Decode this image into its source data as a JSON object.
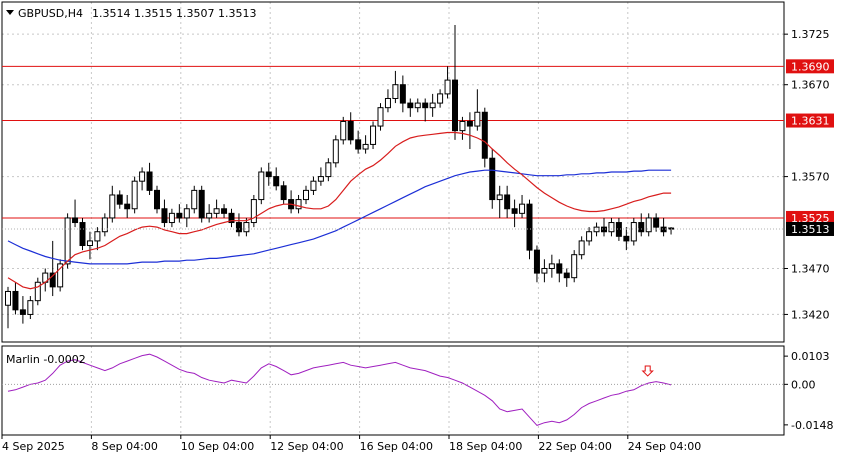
{
  "header": {
    "symbol": "GBPUSD,H4",
    "ohlc": "1.3514 1.3515 1.3507 1.3513"
  },
  "indicator": {
    "name": "Marlin",
    "value": "-0.0002",
    "label": "Marlin -0.0002",
    "ticks": [
      "0.0103",
      "0.00",
      "-0.0148"
    ],
    "signal": "down-arrow"
  },
  "chart_data": {
    "type": "candlestick",
    "y_ticks": [
      "1.3725",
      "1.3670",
      "1.3570",
      "1.3470",
      "1.3420"
    ],
    "ylim": [
      1.339,
      1.376
    ],
    "x_ticks": [
      "4 Sep 2025",
      "8 Sep 04:00",
      "10 Sep 04:00",
      "12 Sep 04:00",
      "16 Sep 04:00",
      "18 Sep 04:00",
      "22 Sep 04:00",
      "24 Sep 04:00"
    ],
    "levels": [
      {
        "value": 1.369,
        "label": "1.3690"
      },
      {
        "value": 1.3631,
        "label": "1.3631"
      },
      {
        "value": 1.3525,
        "label": "1.3525"
      }
    ],
    "current_price": {
      "value": 1.3513,
      "label": "1.3513"
    },
    "candles": [
      [
        1.343,
        1.345,
        1.3405,
        1.3445
      ],
      [
        1.3445,
        1.3455,
        1.342,
        1.3425
      ],
      [
        1.3425,
        1.344,
        1.341,
        1.342
      ],
      [
        1.342,
        1.344,
        1.3415,
        1.3435
      ],
      [
        1.3435,
        1.346,
        1.343,
        1.3455
      ],
      [
        1.3455,
        1.347,
        1.3445,
        1.3465
      ],
      [
        1.3465,
        1.35,
        1.344,
        1.345
      ],
      [
        1.345,
        1.348,
        1.3445,
        1.3475
      ],
      [
        1.3475,
        1.353,
        1.347,
        1.3525
      ],
      [
        1.3525,
        1.3545,
        1.3515,
        1.352
      ],
      [
        1.352,
        1.3525,
        1.349,
        1.3495
      ],
      [
        1.3495,
        1.351,
        1.348,
        1.35
      ],
      [
        1.35,
        1.3515,
        1.349,
        1.351
      ],
      [
        1.351,
        1.353,
        1.3505,
        1.3525
      ],
      [
        1.3525,
        1.356,
        1.352,
        1.355
      ],
      [
        1.355,
        1.3555,
        1.3535,
        1.354
      ],
      [
        1.354,
        1.355,
        1.3525,
        1.3535
      ],
      [
        1.3535,
        1.357,
        1.353,
        1.3565
      ],
      [
        1.3565,
        1.358,
        1.3555,
        1.3575
      ],
      [
        1.3575,
        1.3585,
        1.355,
        1.3555
      ],
      [
        1.3555,
        1.356,
        1.353,
        1.3535
      ],
      [
        1.3535,
        1.3545,
        1.3515,
        1.352
      ],
      [
        1.352,
        1.3535,
        1.3515,
        1.353
      ],
      [
        1.353,
        1.354,
        1.352,
        1.3525
      ],
      [
        1.3525,
        1.354,
        1.3515,
        1.3535
      ],
      [
        1.3535,
        1.356,
        1.353,
        1.3555
      ],
      [
        1.3555,
        1.356,
        1.352,
        1.3525
      ],
      [
        1.3525,
        1.354,
        1.352,
        1.353
      ],
      [
        1.353,
        1.3545,
        1.3525,
        1.3535
      ],
      [
        1.3535,
        1.354,
        1.3525,
        1.353
      ],
      [
        1.353,
        1.3535,
        1.3515,
        1.352
      ],
      [
        1.352,
        1.353,
        1.3505,
        1.351
      ],
      [
        1.351,
        1.3525,
        1.3505,
        1.352
      ],
      [
        1.352,
        1.355,
        1.3515,
        1.3545
      ],
      [
        1.3545,
        1.358,
        1.354,
        1.3575
      ],
      [
        1.3575,
        1.3585,
        1.356,
        1.357
      ],
      [
        1.357,
        1.358,
        1.3555,
        1.356
      ],
      [
        1.356,
        1.3565,
        1.354,
        1.3545
      ],
      [
        1.3545,
        1.3555,
        1.353,
        1.3535
      ],
      [
        1.3535,
        1.355,
        1.353,
        1.3545
      ],
      [
        1.3545,
        1.356,
        1.354,
        1.3555
      ],
      [
        1.3555,
        1.357,
        1.355,
        1.3565
      ],
      [
        1.3565,
        1.358,
        1.356,
        1.357
      ],
      [
        1.357,
        1.359,
        1.3565,
        1.3585
      ],
      [
        1.3585,
        1.3615,
        1.358,
        1.361
      ],
      [
        1.361,
        1.3635,
        1.3605,
        1.363
      ],
      [
        1.363,
        1.364,
        1.3605,
        1.361
      ],
      [
        1.361,
        1.362,
        1.3595,
        1.36
      ],
      [
        1.36,
        1.3615,
        1.3595,
        1.3605
      ],
      [
        1.3605,
        1.363,
        1.36,
        1.3625
      ],
      [
        1.3625,
        1.365,
        1.362,
        1.3645
      ],
      [
        1.3645,
        1.3665,
        1.364,
        1.3655
      ],
      [
        1.3655,
        1.3685,
        1.365,
        1.367
      ],
      [
        1.367,
        1.368,
        1.364,
        1.365
      ],
      [
        1.365,
        1.3655,
        1.3635,
        1.3645
      ],
      [
        1.3645,
        1.3655,
        1.364,
        1.365
      ],
      [
        1.365,
        1.3655,
        1.363,
        1.3645
      ],
      [
        1.3645,
        1.366,
        1.3635,
        1.365
      ],
      [
        1.365,
        1.3665,
        1.3645,
        1.366
      ],
      [
        1.366,
        1.369,
        1.3655,
        1.3675
      ],
      [
        1.3675,
        1.3735,
        1.361,
        1.362
      ],
      [
        1.362,
        1.3635,
        1.361,
        1.363
      ],
      [
        1.363,
        1.364,
        1.36,
        1.3625
      ],
      [
        1.3625,
        1.3665,
        1.362,
        1.364
      ],
      [
        1.364,
        1.3645,
        1.358,
        1.359
      ],
      [
        1.359,
        1.36,
        1.3535,
        1.3545
      ],
      [
        1.3545,
        1.356,
        1.3525,
        1.355
      ],
      [
        1.355,
        1.356,
        1.3525,
        1.3535
      ],
      [
        1.3535,
        1.3545,
        1.3515,
        1.353
      ],
      [
        1.353,
        1.355,
        1.3525,
        1.354
      ],
      [
        1.354,
        1.3545,
        1.348,
        1.349
      ],
      [
        1.349,
        1.3495,
        1.3455,
        1.3465
      ],
      [
        1.3465,
        1.348,
        1.3455,
        1.347
      ],
      [
        1.347,
        1.3485,
        1.346,
        1.3475
      ],
      [
        1.3475,
        1.348,
        1.3455,
        1.3465
      ],
      [
        1.3465,
        1.347,
        1.345,
        1.346
      ],
      [
        1.346,
        1.349,
        1.3455,
        1.3485
      ],
      [
        1.3485,
        1.3505,
        1.348,
        1.35
      ],
      [
        1.35,
        1.3515,
        1.3495,
        1.351
      ],
      [
        1.351,
        1.352,
        1.3505,
        1.3515
      ],
      [
        1.3515,
        1.3525,
        1.3505,
        1.351
      ],
      [
        1.351,
        1.3525,
        1.3505,
        1.352
      ],
      [
        1.352,
        1.3525,
        1.35,
        1.3505
      ],
      [
        1.3505,
        1.3515,
        1.349,
        1.35
      ],
      [
        1.35,
        1.3525,
        1.3495,
        1.352
      ],
      [
        1.352,
        1.353,
        1.3505,
        1.351
      ],
      [
        1.351,
        1.353,
        1.3505,
        1.3525
      ],
      [
        1.3525,
        1.353,
        1.351,
        1.3515
      ],
      [
        1.3515,
        1.3525,
        1.3505,
        1.351
      ],
      [
        1.3514,
        1.3515,
        1.3507,
        1.3513
      ]
    ],
    "ma_red": [
      1.346,
      1.3455,
      1.345,
      1.3448,
      1.345,
      1.3455,
      1.3462,
      1.347,
      1.3478,
      1.3485,
      1.3488,
      1.349,
      1.3492,
      1.3495,
      1.35,
      1.3505,
      1.3508,
      1.3512,
      1.3515,
      1.3516,
      1.3515,
      1.3512,
      1.351,
      1.3508,
      1.3508,
      1.351,
      1.3512,
      1.3515,
      1.3518,
      1.352,
      1.3522,
      1.3522,
      1.3522,
      1.3525,
      1.353,
      1.3535,
      1.3538,
      1.354,
      1.354,
      1.3538,
      1.3536,
      1.3535,
      1.3535,
      1.3538,
      1.3545,
      1.3555,
      1.3565,
      1.3572,
      1.3578,
      1.3582,
      1.3588,
      1.3595,
      1.3603,
      1.3608,
      1.3612,
      1.3614,
      1.3615,
      1.3616,
      1.3617,
      1.3618,
      1.3618,
      1.3617,
      1.3615,
      1.3612,
      1.3608,
      1.36,
      1.3593,
      1.3585,
      1.3578,
      1.3572,
      1.3565,
      1.3558,
      1.3552,
      1.3547,
      1.3542,
      1.3538,
      1.3535,
      1.3533,
      1.3532,
      1.3532,
      1.3533,
      1.3535,
      1.3537,
      1.354,
      1.3543,
      1.3545,
      1.3548,
      1.355,
      1.3552,
      1.3552
    ],
    "ma_blue": [
      1.35,
      1.3496,
      1.3492,
      1.3489,
      1.3486,
      1.3483,
      1.3481,
      1.3479,
      1.3478,
      1.3477,
      1.3476,
      1.3475,
      1.3475,
      1.3475,
      1.3475,
      1.3475,
      1.3475,
      1.3476,
      1.3477,
      1.3477,
      1.3477,
      1.3478,
      1.3478,
      1.3478,
      1.3479,
      1.3479,
      1.348,
      1.3481,
      1.3481,
      1.3482,
      1.3483,
      1.3484,
      1.3485,
      1.3486,
      1.3488,
      1.349,
      1.3492,
      1.3494,
      1.3496,
      1.3498,
      1.35,
      1.3502,
      1.3505,
      1.3508,
      1.3511,
      1.3515,
      1.3519,
      1.3523,
      1.3527,
      1.3531,
      1.3535,
      1.3539,
      1.3543,
      1.3547,
      1.3551,
      1.3555,
      1.3559,
      1.3562,
      1.3565,
      1.3568,
      1.3571,
      1.3573,
      1.3575,
      1.3576,
      1.3577,
      1.3577,
      1.3576,
      1.3575,
      1.3574,
      1.3573,
      1.3572,
      1.3571,
      1.3571,
      1.3571,
      1.3571,
      1.3572,
      1.3572,
      1.3573,
      1.3573,
      1.3574,
      1.3574,
      1.3575,
      1.3575,
      1.3575,
      1.3576,
      1.3576,
      1.3577,
      1.3577,
      1.3577,
      1.3577
    ],
    "marlin_ylim": [
      -0.0185,
      0.014
    ],
    "marlin": [
      -0.0025,
      -0.002,
      -0.001,
      0.0,
      0.0005,
      0.0015,
      0.004,
      0.007,
      0.0085,
      0.009,
      0.008,
      0.007,
      0.006,
      0.005,
      0.006,
      0.0075,
      0.0085,
      0.0095,
      0.0105,
      0.011,
      0.01,
      0.0085,
      0.007,
      0.0055,
      0.0045,
      0.004,
      0.0025,
      0.0015,
      0.001,
      0.0005,
      0.0015,
      0.001,
      0.0005,
      0.003,
      0.006,
      0.0075,
      0.0065,
      0.005,
      0.0035,
      0.004,
      0.005,
      0.006,
      0.0065,
      0.007,
      0.0075,
      0.008,
      0.007,
      0.0065,
      0.006,
      0.0065,
      0.007,
      0.0075,
      0.008,
      0.007,
      0.006,
      0.0055,
      0.005,
      0.004,
      0.003,
      0.0025,
      0.0015,
      0.0005,
      -0.001,
      -0.0025,
      -0.004,
      -0.006,
      -0.009,
      -0.01,
      -0.0095,
      -0.009,
      -0.012,
      -0.015,
      -0.014,
      -0.0135,
      -0.014,
      -0.013,
      -0.011,
      -0.0085,
      -0.007,
      -0.006,
      -0.005,
      -0.004,
      -0.0035,
      -0.0025,
      -0.002,
      -0.0005,
      0.0005,
      0.001,
      0.0005,
      -0.0002
    ]
  }
}
